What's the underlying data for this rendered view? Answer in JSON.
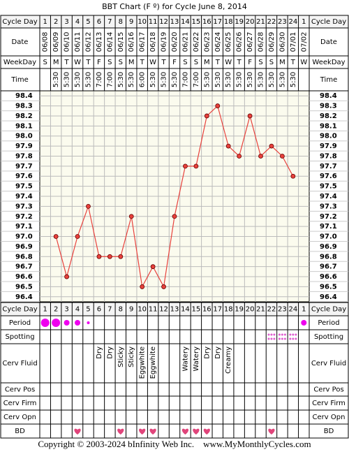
{
  "chart_data": {
    "type": "line",
    "title": "BBT Chart (F º) for Cycle June 8, 2014",
    "row_labels": {
      "cycle_day": "Cycle Day",
      "date": "Date",
      "weekday": "WeekDay",
      "time": "Time",
      "period": "Period",
      "spotting": "Spotting",
      "cerv_fluid": "Cerv Fluid",
      "cerv_pos": "Cerv Pos",
      "cerv_firm": "Cerv Firm",
      "cerv_opn": "Cerv Opn",
      "bd": "BD"
    },
    "categories": [
      1,
      2,
      3,
      4,
      5,
      6,
      7,
      8,
      9,
      10,
      11,
      12,
      13,
      14,
      15,
      16,
      17,
      18,
      19,
      20,
      21,
      22,
      23,
      24,
      1
    ],
    "dates": [
      "06/08",
      "06/09",
      "06/10",
      "06/11",
      "06/12",
      "06/13",
      "06/14",
      "06/15",
      "06/16",
      "06/17",
      "06/18",
      "06/19",
      "06/20",
      "06/21",
      "06/22",
      "06/23",
      "06/24",
      "06/25",
      "06/26",
      "06/27",
      "06/28",
      "06/29",
      "06/30",
      "07/01",
      "07/02"
    ],
    "weekdays": [
      "S",
      "M",
      "T",
      "W",
      "T",
      "F",
      "S",
      "S",
      "M",
      "T",
      "W",
      "T",
      "F",
      "S",
      "S",
      "M",
      "T",
      "W",
      "T",
      "F",
      "S",
      "S",
      "M",
      "T",
      "W"
    ],
    "times": [
      null,
      "5:30",
      "5:30",
      "5:30",
      "5:30",
      "7:00",
      "7:00",
      "5:30",
      "5:30",
      "6:00",
      "5:30",
      "5:30",
      "5:30",
      "7:00",
      "7:00",
      "5:30",
      "5:30",
      "5:30",
      "5:30",
      "5:30",
      "5:30",
      "5:30",
      "5:30",
      "5:30",
      null
    ],
    "values": [
      null,
      97.0,
      96.6,
      97.0,
      97.3,
      96.8,
      96.8,
      96.8,
      97.2,
      96.5,
      96.7,
      96.5,
      97.2,
      97.7,
      97.7,
      98.2,
      98.3,
      97.9,
      97.8,
      98.2,
      97.8,
      97.9,
      97.8,
      97.6,
      null
    ],
    "color": "#e8413c",
    "ylim": [
      96.35,
      98.45
    ],
    "yticks": [
      98.4,
      98.3,
      98.2,
      98.1,
      {
        "value": 98,
        "label": "98.0"
      },
      97.9,
      97.8,
      97.7,
      97.6,
      97.5,
      97.4,
      97.3,
      97.2,
      97.1,
      {
        "value": 97,
        "label": "97.0"
      },
      96.9,
      96.8,
      96.7,
      96.6,
      96.5,
      96.4
    ],
    "grid": true,
    "period": [
      3,
      3,
      2,
      2,
      1,
      null,
      null,
      null,
      null,
      null,
      null,
      null,
      null,
      null,
      null,
      null,
      null,
      null,
      null,
      null,
      null,
      null,
      null,
      null,
      2
    ],
    "period_color": "#ee00ee",
    "spotting": [
      null,
      null,
      null,
      null,
      null,
      null,
      null,
      null,
      null,
      null,
      null,
      null,
      null,
      null,
      null,
      null,
      null,
      null,
      null,
      null,
      null,
      1,
      1,
      1,
      null
    ],
    "spotting_color": "#e060d0",
    "cerv_fluid": [
      null,
      null,
      null,
      null,
      null,
      "Dry",
      "Dry",
      "Sticky",
      "Sticky",
      "Eggwhite",
      "Eggwhite",
      null,
      null,
      "Watery",
      "Watery",
      "Dry",
      "Dry",
      "Creamy",
      null,
      null,
      null,
      null,
      null,
      null,
      null
    ],
    "bd": [
      null,
      null,
      null,
      1,
      null,
      null,
      null,
      1,
      null,
      1,
      1,
      null,
      null,
      1,
      1,
      1,
      null,
      null,
      null,
      null,
      null,
      1,
      null,
      null,
      null
    ],
    "bd_color": "#e0457b",
    "footer": "Copyright © 2003-2024 bInfinity Web Inc.    www.MyMonthlyCycles.com"
  }
}
